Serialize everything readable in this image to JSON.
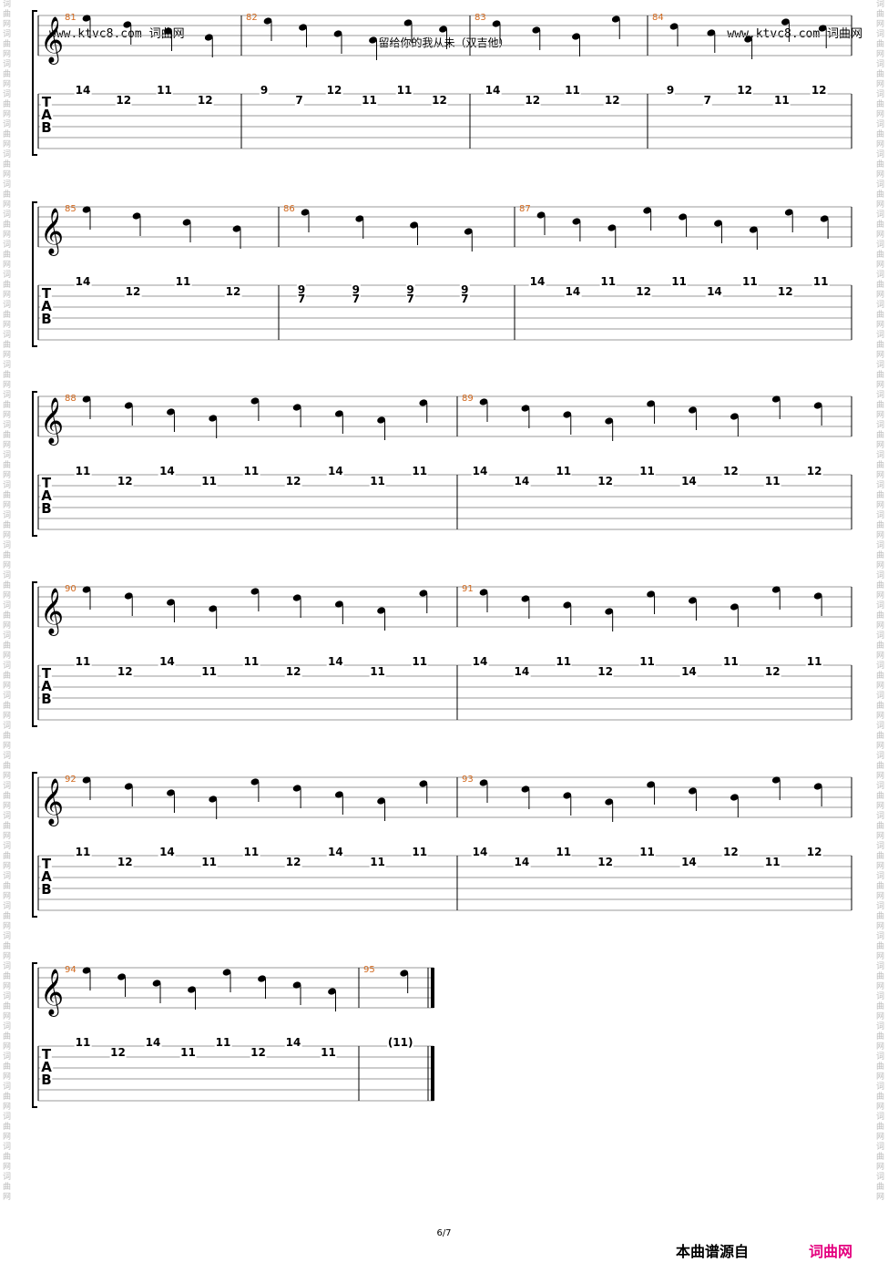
{
  "header": {
    "site_left": "www.ktvc8.com 词曲网",
    "site_right": "www.ktvc8.com 词曲网",
    "title": "留给你的我从未（双吉他）"
  },
  "watermark_side": "词曲网词曲网词曲网词曲网词曲网词曲网词曲网词曲网词曲网词曲网词曲网词曲网词曲网词曲网词曲网词曲网词曲网词曲网词曲网词曲网词曲网词曲网词曲网词曲网词曲网词曲网词曲网词曲网词曲网词曲网词曲网词曲网词曲网词曲网词曲网词曲网词曲网词曲网词曲网词曲网",
  "tab_label": [
    "T",
    "A",
    "B"
  ],
  "systems": [
    {
      "measures": [
        {
          "number": "81",
          "frets": [
            [
              "14"
            ],
            [
              "12"
            ],
            [
              "11"
            ],
            [
              "12"
            ]
          ]
        },
        {
          "number": "82",
          "frets": [
            [
              "9"
            ],
            [
              "7"
            ],
            [
              "12"
            ],
            [
              "11"
            ],
            [
              "11"
            ],
            [
              "12"
            ]
          ]
        },
        {
          "number": "83",
          "frets": [
            [
              "14"
            ],
            [
              "12"
            ],
            [
              "11"
            ],
            [
              "12"
            ]
          ]
        },
        {
          "number": "84",
          "frets": [
            [
              "9"
            ],
            [
              "7"
            ],
            [
              "12"
            ],
            [
              "11"
            ],
            [
              "12"
            ]
          ]
        }
      ]
    },
    {
      "measures": [
        {
          "number": "85",
          "frets": [
            [
              "14"
            ],
            [
              "12"
            ],
            [
              "11"
            ],
            [
              "12"
            ]
          ]
        },
        {
          "number": "86",
          "frets": [
            [
              "9",
              "7"
            ],
            [
              "9",
              "7"
            ],
            [
              "9",
              "7"
            ],
            [
              "9",
              "7"
            ]
          ]
        },
        {
          "number": "87",
          "frets": [
            [
              "14"
            ],
            [
              "14"
            ],
            [
              "11"
            ],
            [
              "12"
            ],
            [
              "11"
            ],
            [
              "14"
            ],
            [
              "11"
            ],
            [
              "12"
            ],
            [
              "11"
            ]
          ]
        }
      ]
    },
    {
      "measures": [
        {
          "number": "88",
          "frets": [
            [
              "11"
            ],
            [
              "12"
            ],
            [
              "14"
            ],
            [
              "11"
            ],
            [
              "11"
            ],
            [
              "12"
            ],
            [
              "14"
            ],
            [
              "11"
            ],
            [
              "11"
            ]
          ]
        },
        {
          "number": "89",
          "frets": [
            [
              "14"
            ],
            [
              "14"
            ],
            [
              "11"
            ],
            [
              "12"
            ],
            [
              "11"
            ],
            [
              "14"
            ],
            [
              "12"
            ],
            [
              "11"
            ],
            [
              "12"
            ]
          ]
        }
      ]
    },
    {
      "measures": [
        {
          "number": "90",
          "frets": [
            [
              "11"
            ],
            [
              "12"
            ],
            [
              "14"
            ],
            [
              "11"
            ],
            [
              "11"
            ],
            [
              "12"
            ],
            [
              "14"
            ],
            [
              "11"
            ],
            [
              "11"
            ]
          ]
        },
        {
          "number": "91",
          "frets": [
            [
              "14"
            ],
            [
              "14"
            ],
            [
              "11"
            ],
            [
              "12"
            ],
            [
              "11"
            ],
            [
              "14"
            ],
            [
              "11"
            ],
            [
              "12"
            ],
            [
              "11"
            ]
          ]
        }
      ]
    },
    {
      "measures": [
        {
          "number": "92",
          "frets": [
            [
              "11"
            ],
            [
              "12"
            ],
            [
              "14"
            ],
            [
              "11"
            ],
            [
              "11"
            ],
            [
              "12"
            ],
            [
              "14"
            ],
            [
              "11"
            ],
            [
              "11"
            ]
          ]
        },
        {
          "number": "93",
          "frets": [
            [
              "14"
            ],
            [
              "14"
            ],
            [
              "11"
            ],
            [
              "12"
            ],
            [
              "11"
            ],
            [
              "14"
            ],
            [
              "12"
            ],
            [
              "11"
            ],
            [
              "12"
            ]
          ]
        }
      ]
    },
    {
      "measures": [
        {
          "number": "94",
          "frets": [
            [
              "11"
            ],
            [
              "12"
            ],
            [
              "14"
            ],
            [
              "11"
            ],
            [
              "11"
            ],
            [
              "12"
            ],
            [
              "14"
            ],
            [
              "11"
            ]
          ]
        },
        {
          "number": "95",
          "frets": [
            [
              "(11)"
            ]
          ]
        }
      ]
    }
  ],
  "footer": {
    "page": "6/7",
    "source_label": "本曲谱源自",
    "brand": "词曲网"
  }
}
